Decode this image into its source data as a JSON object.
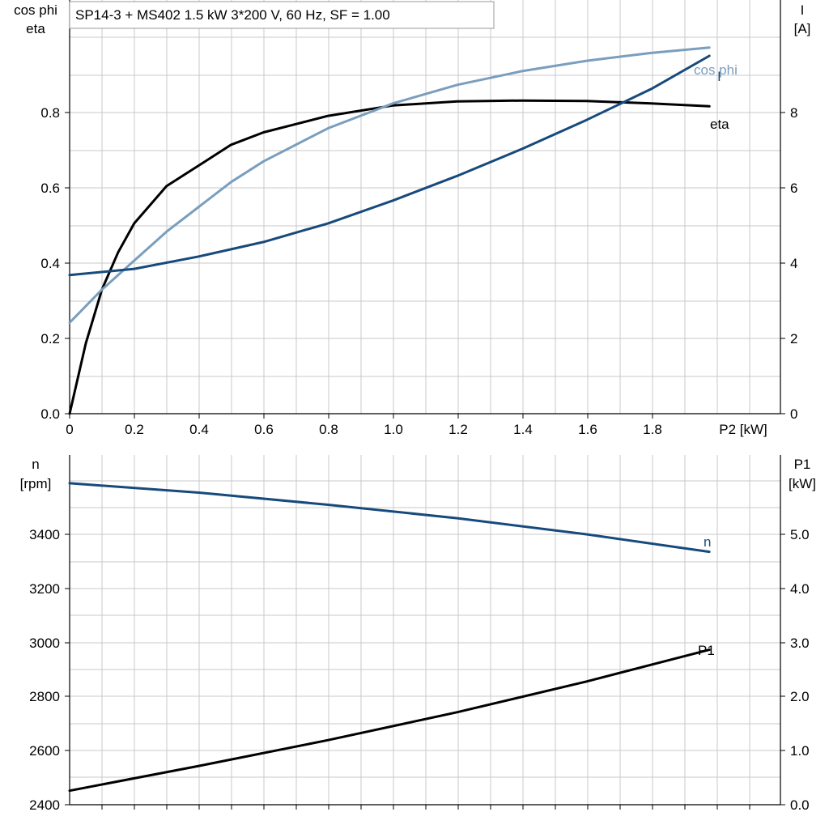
{
  "title": "SP14-3 + MS402   1.5 kW   3*200 V, 60 Hz, SF = 1.00",
  "colors": {
    "grid": "#c8c8c8",
    "axis": "#000000",
    "dark_blue": "#174a7c",
    "light_blue": "#7a9ebd",
    "black": "#000000"
  },
  "chart_data": [
    {
      "type": "line",
      "xlabel": "P2 [kW]",
      "xlim": [
        0,
        2.2
      ],
      "xticks": [
        "0",
        "0.2",
        "0.4",
        "0.6",
        "0.8",
        "1.0",
        "1.2",
        "1.4",
        "1.6",
        "1.8"
      ],
      "y_left": {
        "label_lines": [
          "cos phi",
          "eta"
        ],
        "lim": [
          0,
          1.0
        ],
        "ticks": [
          "0.0",
          "0.2",
          "0.4",
          "0.6",
          "0.8"
        ]
      },
      "y_right": {
        "label_lines": [
          "I",
          "[A]"
        ],
        "lim": [
          0,
          10
        ],
        "ticks": [
          "0",
          "2",
          "4",
          "6",
          "8"
        ]
      },
      "series": [
        {
          "name": "eta",
          "axis": "left",
          "color": "#000000",
          "x": [
            0,
            0.05,
            0.1,
            0.15,
            0.2,
            0.3,
            0.4,
            0.5,
            0.6,
            0.7,
            0.8,
            1.0,
            1.2,
            1.4,
            1.6,
            1.8,
            1.98
          ],
          "y": [
            0,
            0.17,
            0.3,
            0.39,
            0.46,
            0.55,
            0.6,
            0.65,
            0.68,
            0.7,
            0.72,
            0.745,
            0.755,
            0.757,
            0.756,
            0.75,
            0.743
          ]
        },
        {
          "name": "cos phi",
          "axis": "left",
          "color": "#7a9ebd",
          "x": [
            0,
            0.1,
            0.2,
            0.3,
            0.4,
            0.5,
            0.6,
            0.8,
            1.0,
            1.2,
            1.4,
            1.6,
            1.8,
            1.98
          ],
          "y": [
            0.22,
            0.3,
            0.37,
            0.44,
            0.5,
            0.56,
            0.61,
            0.69,
            0.75,
            0.795,
            0.828,
            0.853,
            0.872,
            0.885
          ]
        },
        {
          "name": "I",
          "axis": "right",
          "color": "#174a7c",
          "x": [
            0,
            0.2,
            0.4,
            0.6,
            0.8,
            1.0,
            1.2,
            1.4,
            1.6,
            1.8,
            1.98
          ],
          "y": [
            3.35,
            3.5,
            3.8,
            4.15,
            4.6,
            5.15,
            5.75,
            6.4,
            7.1,
            7.85,
            8.65
          ]
        }
      ]
    },
    {
      "type": "line",
      "xlim": [
        0,
        2.2
      ],
      "y_left": {
        "label_lines": [
          "n",
          "[rpm]"
        ],
        "lim": [
          2400,
          3700
        ],
        "ticks": [
          "2400",
          "2600",
          "2800",
          "3000",
          "3200",
          "3400"
        ]
      },
      "y_right": {
        "label_lines": [
          "P1",
          "[kW]"
        ],
        "lim": [
          0,
          6.5
        ],
        "ticks": [
          "0.0",
          "1.0",
          "2.0",
          "3.0",
          "4.0",
          "5.0"
        ]
      },
      "series": [
        {
          "name": "n",
          "axis": "left",
          "color": "#174a7c",
          "x": [
            0,
            0.4,
            0.8,
            1.2,
            1.6,
            1.98
          ],
          "y": [
            3595,
            3560,
            3515,
            3465,
            3405,
            3340
          ]
        },
        {
          "name": "P1",
          "axis": "right",
          "color": "#000000",
          "x": [
            0,
            0.4,
            0.8,
            1.2,
            1.6,
            1.98
          ],
          "y": [
            0.26,
            0.72,
            1.2,
            1.72,
            2.29,
            2.88
          ]
        }
      ]
    }
  ]
}
